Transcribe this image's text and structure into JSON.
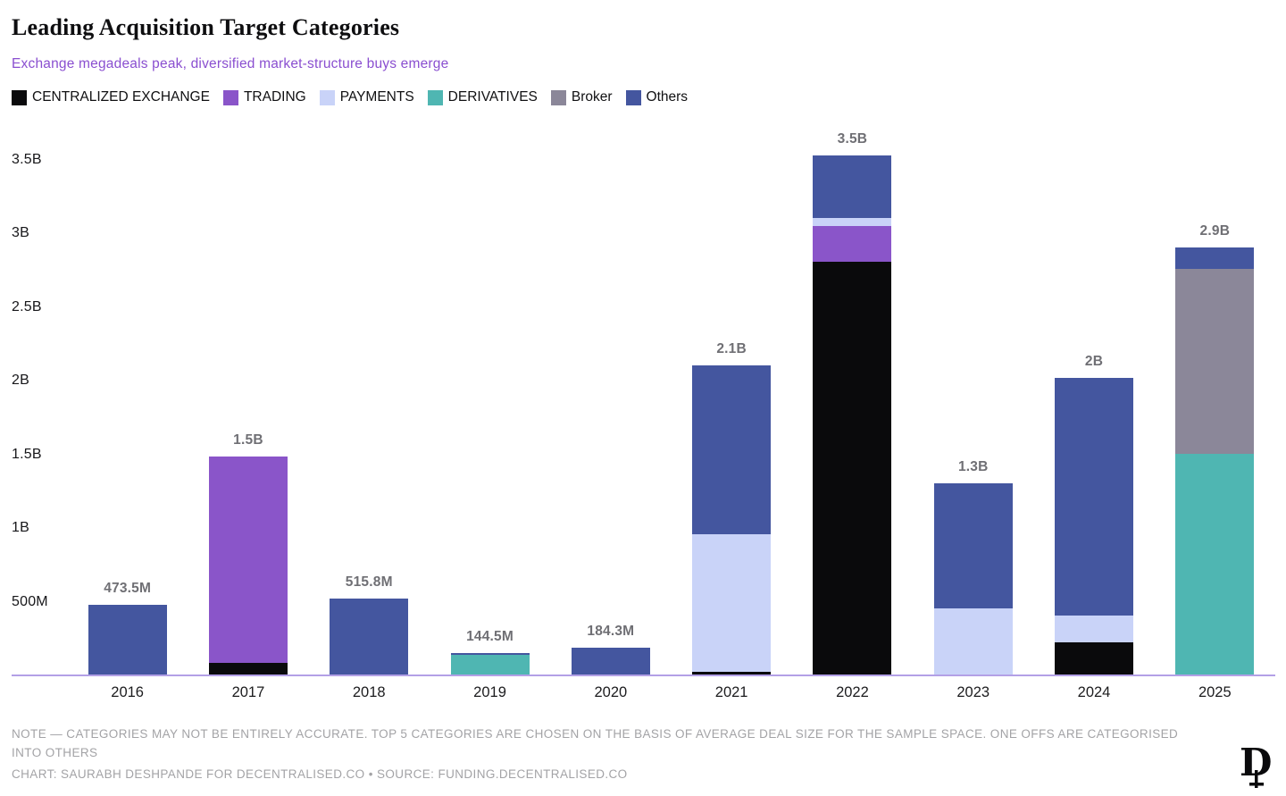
{
  "header": {
    "title": "Leading Acquisition Target Categories",
    "subtitle": "Exchange megadeals peak, diversified market-structure buys emerge"
  },
  "footer": {
    "note_line": "NOTE — CATEGORIES MAY NOT BE ENTIRELY ACCURATE. TOP 5 CATEGORIES ARE CHOSEN ON THE BASIS OF AVERAGE DEAL SIZE FOR THE SAMPLE SPACE. ONE OFFS ARE CATEGORISED INTO OTHERS",
    "credit_line": "CHART: SAURABH DESHPANDE FOR DECENTRALISED.CO • SOURCE: FUNDING.DECENTRALISED.CO"
  },
  "chart_data": {
    "type": "bar",
    "stacked": true,
    "title": "Leading Acquisition Target Categories",
    "subtitle": "Exchange megadeals peak, diversified market-structure buys emerge",
    "xlabel": "",
    "ylabel": "",
    "unit": "USD",
    "value_unit": "billions",
    "ylim": [
      0,
      3.6
    ],
    "grid": false,
    "legend_position": "top",
    "categories": [
      "2016",
      "2017",
      "2018",
      "2019",
      "2020",
      "2021",
      "2022",
      "2023",
      "2024",
      "2025"
    ],
    "y_ticks": [
      {
        "label": "500M",
        "value": 0.5
      },
      {
        "label": "1B",
        "value": 1.0
      },
      {
        "label": "1.5B",
        "value": 1.5
      },
      {
        "label": "2B",
        "value": 2.0
      },
      {
        "label": "2.5B",
        "value": 2.5
      },
      {
        "label": "3B",
        "value": 3.0
      },
      {
        "label": "3.5B",
        "value": 3.5
      }
    ],
    "series": [
      {
        "name": "CENTRALIZED EXCHANGE",
        "key": "centralized-exchange",
        "color": "#0a0a0c",
        "values": [
          0,
          0.08,
          0,
          0,
          0,
          0.02,
          2.8,
          0,
          0.22,
          0
        ]
      },
      {
        "name": "TRADING",
        "key": "trading",
        "color": "#8a55c9",
        "values": [
          0,
          1.4,
          0,
          0,
          0,
          0,
          0.24,
          0,
          0,
          0
        ]
      },
      {
        "name": "PAYMENTS",
        "key": "payments",
        "color": "#c9d3f8",
        "values": [
          0,
          0,
          0,
          0,
          0,
          0.93,
          0.06,
          0.45,
          0.18,
          0
        ]
      },
      {
        "name": "DERIVATIVES",
        "key": "derivatives",
        "color": "#4fb6b2",
        "values": [
          0,
          0,
          0,
          0.132,
          0,
          0,
          0,
          0,
          0,
          1.5
        ]
      },
      {
        "name": "Broker",
        "key": "broker",
        "color": "#8b8799",
        "values": [
          0,
          0,
          0,
          0,
          0,
          0,
          0,
          0,
          0,
          1.25
        ]
      },
      {
        "name": "Others",
        "key": "others",
        "color": "#44569f",
        "values": [
          0.4735,
          0,
          0.5158,
          0.0125,
          0.1843,
          1.15,
          0.42,
          0.85,
          1.61,
          0.15
        ]
      }
    ],
    "total_labels": [
      "473.5M",
      "1.5B",
      "515.8M",
      "144.5M",
      "184.3M",
      "2.1B",
      "3.5B",
      "1.3B",
      "2B",
      "2.9B"
    ]
  }
}
